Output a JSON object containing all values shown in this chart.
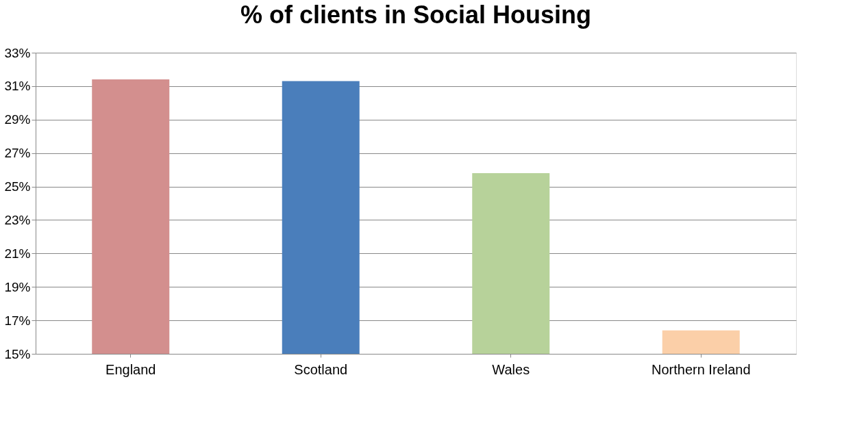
{
  "chart_data": {
    "type": "bar",
    "title": "% of clients in Social Housing",
    "categories": [
      "England",
      "Scotland",
      "Wales",
      "Northern Ireland"
    ],
    "values": [
      31.4,
      31.3,
      25.8,
      16.4
    ],
    "colors": [
      "#d38f8e",
      "#4a7ebb",
      "#b7d29a",
      "#fbcfa8"
    ],
    "ylim": [
      15,
      33
    ],
    "yticks": [
      {
        "value": 15,
        "label": "15%"
      },
      {
        "value": 17,
        "label": "17%"
      },
      {
        "value": 19,
        "label": "19%"
      },
      {
        "value": 21,
        "label": "21%"
      },
      {
        "value": 23,
        "label": "23%"
      },
      {
        "value": 25,
        "label": "25%"
      },
      {
        "value": 27,
        "label": "27%"
      },
      {
        "value": 29,
        "label": "29%"
      },
      {
        "value": 31,
        "label": "31%"
      },
      {
        "value": 33,
        "label": "33%"
      }
    ],
    "grid": "y"
  }
}
